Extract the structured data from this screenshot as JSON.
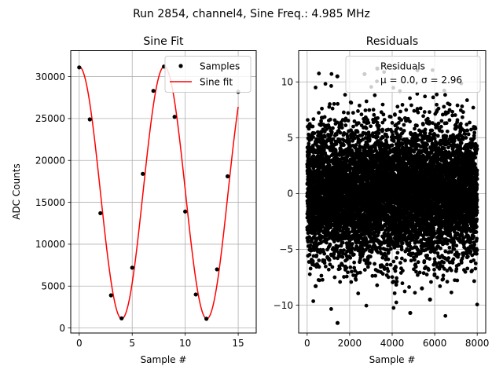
{
  "figure": {
    "suptitle": "Run 2854, channel4, Sine Freq.: 4.985 MHz"
  },
  "colors": {
    "fit_line": "#ff0000",
    "markers": "#000000",
    "grid": "#b0b0b0",
    "legend_border": "#cccccc"
  },
  "chart_data": [
    {
      "type": "scatter+line",
      "title": "Sine Fit",
      "xlabel": "Sample #",
      "ylabel": "ADC Counts",
      "xlim": [
        -0.8,
        16.7
      ],
      "ylim": [
        -600,
        33100
      ],
      "xticks": [
        0,
        5,
        10,
        15
      ],
      "yticks": [
        0,
        5000,
        10000,
        15000,
        20000,
        25000,
        30000
      ],
      "grid": true,
      "legend": {
        "placement": "upper right",
        "entries": [
          "Samples",
          "Sine fit"
        ]
      },
      "samples": {
        "name": "Samples",
        "x": [
          0,
          1,
          2,
          3,
          4,
          5,
          6,
          7,
          8,
          9,
          10,
          11,
          12,
          13,
          14,
          15
        ],
        "y": [
          31100,
          24900,
          13700,
          3900,
          1150,
          7200,
          18400,
          28300,
          31200,
          25200,
          13900,
          4000,
          1100,
          7000,
          18100,
          28200
        ]
      },
      "fit": {
        "name": "Sine fit",
        "model": "offset + amplitude*cos(2*pi*(x - phase_shift)/period)",
        "offset": 16150,
        "amplitude": 15050,
        "period": 8.025,
        "phase_shift": 0.0
      }
    },
    {
      "type": "scatter",
      "title": "Residuals",
      "xlabel": "Sample #",
      "ylabel": "",
      "xlim": [
        -400,
        8400
      ],
      "ylim": [
        -12.5,
        12.8
      ],
      "xticks": [
        0,
        2000,
        4000,
        6000,
        8000
      ],
      "yticks": [
        -10,
        -5,
        0,
        5,
        10
      ],
      "grid": true,
      "legend": {
        "placement": "upper right",
        "entries": [
          "Residuals",
          "μ = 0.0, σ = 2.96"
        ]
      },
      "n_points": 8000,
      "mean": 0.0,
      "std": 2.96,
      "series": [
        {
          "name": "Residuals",
          "notable_points": [
            {
              "x": 1430,
              "y": -11.6
            },
            {
              "x": 4850,
              "y": -10.7
            },
            {
              "x": 1420,
              "y": 10.5
            },
            {
              "x": 2700,
              "y": 10.7
            },
            {
              "x": 3300,
              "y": 11.2
            },
            {
              "x": 5400,
              "y": -8.5
            },
            {
              "x": 5780,
              "y": -9.5
            },
            {
              "x": 400,
              "y": -8.3
            }
          ]
        }
      ]
    }
  ]
}
